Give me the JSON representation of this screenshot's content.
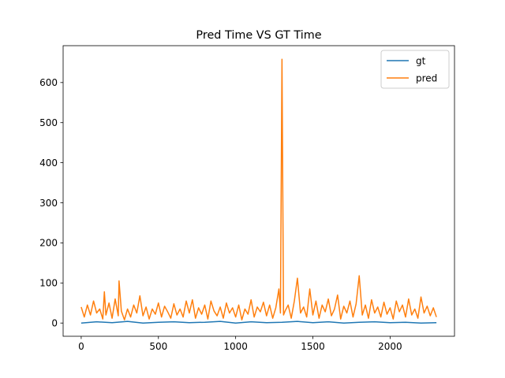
{
  "chart_data": {
    "type": "line",
    "title": "Pred Time VS GT Time",
    "xlabel": "",
    "ylabel": "",
    "xlim": [
      -117,
      2417
    ],
    "ylim": [
      -33,
      692
    ],
    "x_ticks": [
      0,
      500,
      1000,
      1500,
      2000
    ],
    "y_ticks": [
      0,
      100,
      200,
      300,
      400,
      500,
      600
    ],
    "grid": false,
    "legend_position": "top-right",
    "series": [
      {
        "name": "gt",
        "color": "#1f77b4",
        "x": [
          0,
          100,
          200,
          300,
          400,
          500,
          600,
          700,
          800,
          900,
          1000,
          1100,
          1200,
          1300,
          1400,
          1500,
          1600,
          1700,
          1800,
          1900,
          2000,
          2100,
          2200,
          2300
        ],
        "y": [
          0,
          3,
          1,
          4,
          0,
          2,
          3,
          1,
          2,
          4,
          0,
          3,
          1,
          2,
          4,
          1,
          3,
          0,
          2,
          3,
          1,
          2,
          0,
          1
        ]
      },
      {
        "name": "pred",
        "color": "#ff7f0e",
        "x": [
          0,
          20,
          40,
          60,
          80,
          100,
          120,
          140,
          150,
          160,
          180,
          200,
          220,
          240,
          245,
          260,
          280,
          300,
          320,
          340,
          360,
          380,
          400,
          420,
          440,
          460,
          480,
          500,
          520,
          540,
          560,
          580,
          600,
          620,
          640,
          660,
          680,
          700,
          720,
          740,
          760,
          780,
          800,
          820,
          840,
          860,
          880,
          900,
          920,
          940,
          960,
          980,
          1000,
          1020,
          1040,
          1060,
          1080,
          1100,
          1120,
          1140,
          1160,
          1180,
          1200,
          1220,
          1240,
          1260,
          1280,
          1290,
          1300,
          1310,
          1320,
          1340,
          1360,
          1380,
          1400,
          1420,
          1440,
          1460,
          1480,
          1500,
          1520,
          1540,
          1560,
          1580,
          1600,
          1620,
          1640,
          1660,
          1680,
          1700,
          1720,
          1740,
          1760,
          1780,
          1800,
          1820,
          1840,
          1860,
          1880,
          1900,
          1920,
          1940,
          1960,
          1980,
          2000,
          2020,
          2040,
          2060,
          2080,
          2100,
          2120,
          2140,
          2160,
          2180,
          2200,
          2220,
          2240,
          2260,
          2280,
          2300
        ],
        "y": [
          40,
          15,
          45,
          20,
          55,
          25,
          35,
          10,
          78,
          20,
          50,
          12,
          60,
          18,
          105,
          30,
          8,
          35,
          15,
          45,
          25,
          68,
          18,
          40,
          10,
          35,
          22,
          50,
          15,
          42,
          28,
          12,
          48,
          20,
          35,
          15,
          55,
          25,
          58,
          12,
          38,
          22,
          45,
          10,
          55,
          30,
          18,
          40,
          12,
          50,
          25,
          38,
          15,
          45,
          8,
          35,
          22,
          58,
          15,
          40,
          28,
          52,
          18,
          45,
          12,
          38,
          85,
          25,
          658,
          20,
          30,
          45,
          12,
          55,
          112,
          25,
          40,
          15,
          85,
          20,
          55,
          12,
          45,
          28,
          60,
          18,
          35,
          70,
          10,
          42,
          25,
          55,
          15,
          48,
          118,
          20,
          45,
          12,
          58,
          25,
          40,
          15,
          52,
          22,
          38,
          10,
          55,
          28,
          45,
          15,
          60,
          20,
          35,
          12,
          65,
          25,
          42,
          18,
          38,
          15
        ]
      }
    ]
  }
}
